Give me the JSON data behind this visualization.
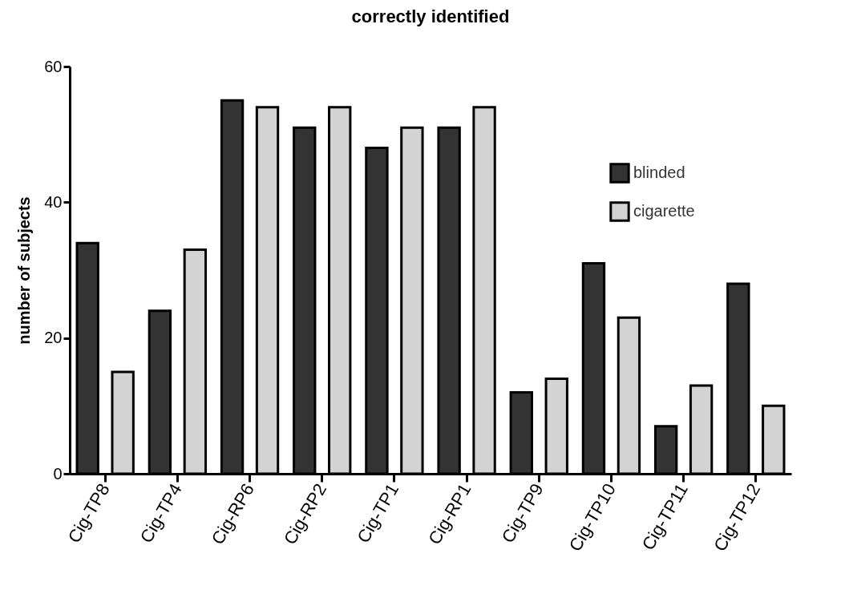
{
  "chart_data": {
    "type": "bar",
    "title": "correctly identified",
    "ylabel": "number of subjects",
    "categories": [
      "Cig-TP8",
      "Cig-TP4",
      "Cig-RP6",
      "Cig-RP2",
      "Cig-TP1",
      "Cig-RP1",
      "Cig-TP9",
      "Cig-TP10",
      "Cig-TP11",
      "Cig-TP12"
    ],
    "series": [
      {
        "name": "blinded",
        "color": "#333333",
        "values": [
          34,
          24,
          55,
          51,
          48,
          51,
          12,
          31,
          7,
          28
        ]
      },
      {
        "name": "cigarette",
        "color": "#d3d3d3",
        "values": [
          15,
          33,
          54,
          54,
          51,
          54,
          14,
          23,
          13,
          10
        ]
      }
    ],
    "ylim": [
      0,
      60
    ],
    "yticks": [
      0,
      20,
      40,
      60
    ],
    "grid": false,
    "legend": "top right"
  }
}
